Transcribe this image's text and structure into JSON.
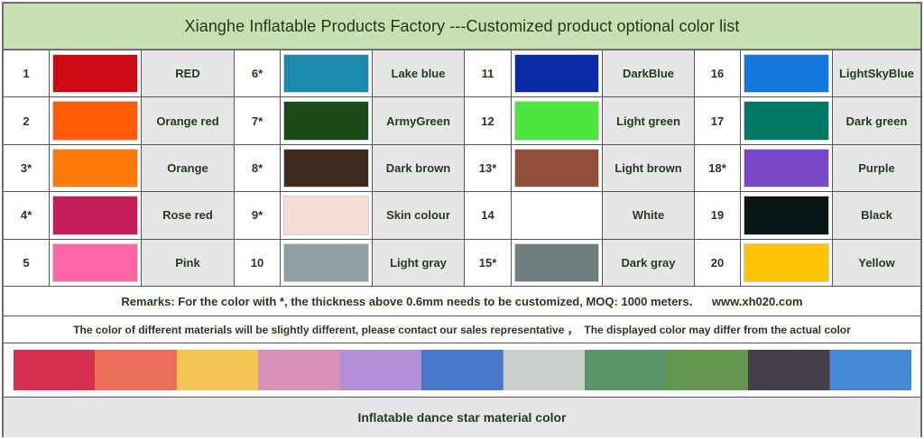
{
  "header": {
    "title": "Xianghe Inflatable Products Factory ---Customized product optional color list",
    "background": "#c6e0b4"
  },
  "colors": [
    {
      "num": "1",
      "name": "RED",
      "hex": "#cc0a14"
    },
    {
      "num": "2",
      "name": "Orange red",
      "hex": "#ff5a05"
    },
    {
      "num": "3*",
      "name": "Orange",
      "hex": "#ff7a08"
    },
    {
      "num": "4*",
      "name": "Rose red",
      "hex": "#c41c58"
    },
    {
      "num": "5",
      "name": "Pink",
      "hex": "#ff67a6"
    },
    {
      "num": "6*",
      "name": "Lake blue",
      "hex": "#1a8aad"
    },
    {
      "num": "7*",
      "name": "ArmyGreen",
      "hex": "#1a4a18"
    },
    {
      "num": "8*",
      "name": "Dark brown",
      "hex": "#3e2c20"
    },
    {
      "num": "9*",
      "name": "Skin colour",
      "hex": "#f4ded3"
    },
    {
      "num": "10",
      "name": "Light gray",
      "hex": "#8f9fa3"
    },
    {
      "num": "11",
      "name": "DarkBlue",
      "hex": "#0b2aa6"
    },
    {
      "num": "12",
      "name": "Light green",
      "hex": "#4de63e"
    },
    {
      "num": "13*",
      "name": "Light brown",
      "hex": "#934e3c"
    },
    {
      "num": "14",
      "name": "White",
      "hex": "#ffffff"
    },
    {
      "num": "15*",
      "name": "Dark gray",
      "hex": "#707e7f"
    },
    {
      "num": "16",
      "name": "LightSkyBlue",
      "hex": "#1377dc"
    },
    {
      "num": "17",
      "name": "Dark green",
      "hex": "#037865"
    },
    {
      "num": "18*",
      "name": "Purple",
      "hex": "#7a48c6"
    },
    {
      "num": "19",
      "name": "Black",
      "hex": "#0b1716"
    },
    {
      "num": "20",
      "name": "Yellow",
      "hex": "#ffc305"
    }
  ],
  "remarks": "Remarks: For the color with *, the thickness above 0.6mm needs to be customized, MOQ: 1000 meters.      www.xh020.com",
  "note": "The color of different materials will be slightly different, please contact our sales representative ，  The displayed color may differ from the actual color",
  "material_strip": {
    "bands": [
      "#d8304f",
      "#ec6e57",
      "#f4c453",
      "#da8fb5",
      "#b08fd6",
      "#4677c8",
      "#c9cdcc",
      "#5a9468",
      "#63974d",
      "#463f4a",
      "#4588d6"
    ]
  },
  "footer": {
    "caption": "Inflatable dance star material color"
  }
}
